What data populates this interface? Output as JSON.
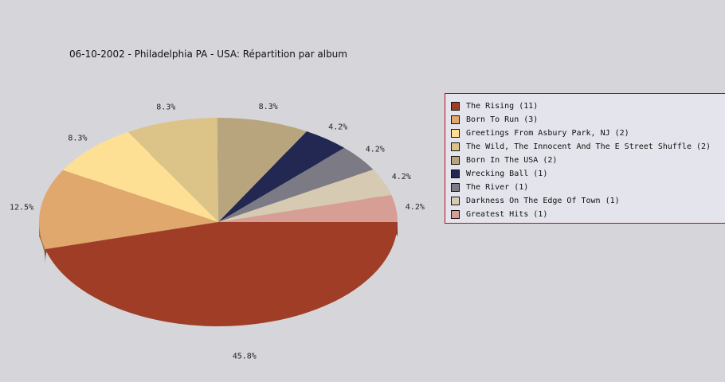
{
  "chart_data": {
    "type": "pie",
    "title": "06-10-2002 - Philadelphia PA - USA:  Répartition par album",
    "slices": [
      {
        "label": "The Rising (11)",
        "value": 45.8,
        "display": "45.8%",
        "color": "#a03d26"
      },
      {
        "label": "Born To Run (3)",
        "value": 12.5,
        "display": "12.5%",
        "color": "#e0a86d"
      },
      {
        "label": "Greetings From Asbury Park, NJ (2)",
        "value": 8.3,
        "display": "8.3%",
        "color": "#fee095"
      },
      {
        "label": "The Wild, The Innocent And The E Street Shuffle (2)",
        "value": 8.3,
        "display": "8.3%",
        "color": "#dcc488"
      },
      {
        "label": "Born In The USA (2)",
        "value": 8.3,
        "display": "8.3%",
        "color": "#b8a57e"
      },
      {
        "label": "Wrecking Ball (1)",
        "value": 4.2,
        "display": "4.2%",
        "color": "#232852"
      },
      {
        "label": "The River (1)",
        "value": 4.2,
        "display": "4.2%",
        "color": "#7b7a85"
      },
      {
        "label": "Darkness On The Edge Of Town (1)",
        "value": 4.2,
        "display": "4.2%",
        "color": "#d6cab2"
      },
      {
        "label": "Greatest Hits (1)",
        "value": 4.2,
        "display": "4.2%",
        "color": "#d79e95"
      }
    ],
    "legend_position": "right"
  }
}
